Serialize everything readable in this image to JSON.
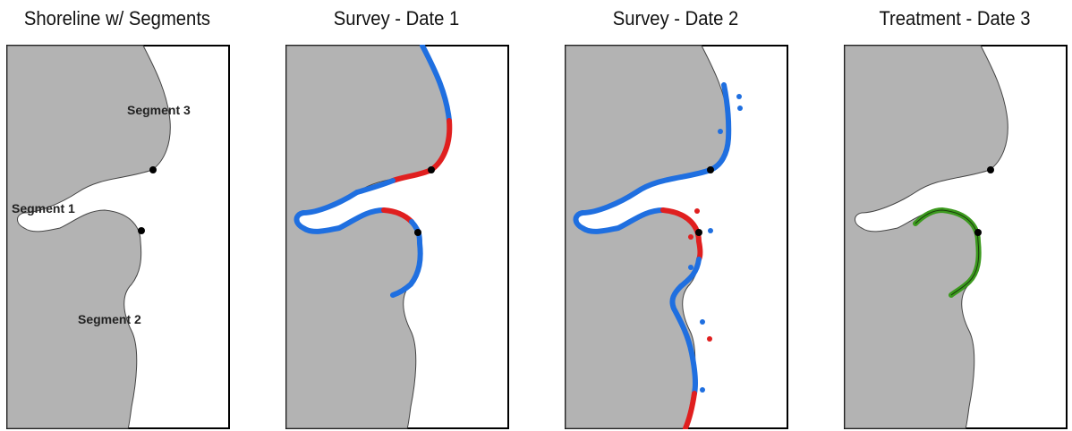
{
  "panels": [
    {
      "title": "Shoreline w/ Segments"
    },
    {
      "title": "Survey - Date 1"
    },
    {
      "title": "Survey - Date 2"
    },
    {
      "title": "Treatment - Date 3"
    }
  ],
  "segment_labels": {
    "segment_1": "Segment 1",
    "segment_2": "Segment 2",
    "segment_3": "Segment 3"
  },
  "colors": {
    "land": "#b3b3b3",
    "survey_clean": "#1f6fe0",
    "survey_oiled": "#e01f1f",
    "treatment": "#3c9a1e",
    "boundary": "#000000"
  }
}
